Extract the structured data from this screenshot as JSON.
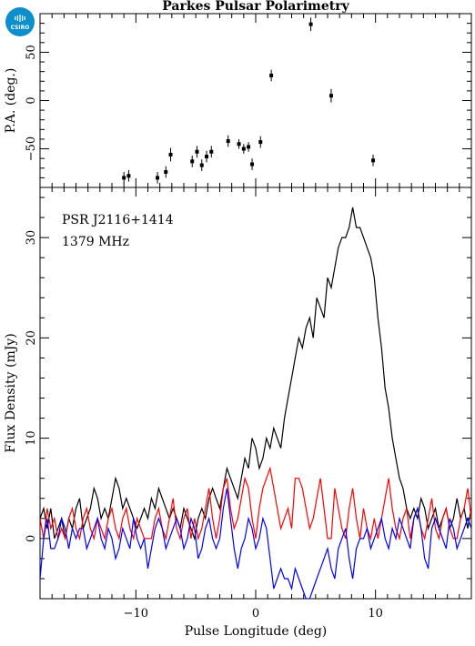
{
  "title": "Parkes Pulsar Polarimetry",
  "logo": {
    "text": "CSIRO",
    "color": "#0e8fcd"
  },
  "chart_data": [
    {
      "type": "scatter",
      "panel": "top",
      "ylabel": "P.A. (deg.)",
      "xlim": [
        -18,
        18
      ],
      "ylim": [
        -90,
        90
      ],
      "yticks": [
        -50,
        0,
        50
      ],
      "points": [
        {
          "x": -11.0,
          "y": -80,
          "err": 6
        },
        {
          "x": -10.6,
          "y": -78,
          "err": 6
        },
        {
          "x": -8.2,
          "y": -80,
          "err": 6
        },
        {
          "x": -7.5,
          "y": -74,
          "err": 6
        },
        {
          "x": -7.1,
          "y": -56,
          "err": 7
        },
        {
          "x": -5.3,
          "y": -63,
          "err": 6
        },
        {
          "x": -4.9,
          "y": -53,
          "err": 6
        },
        {
          "x": -4.5,
          "y": -67,
          "err": 6
        },
        {
          "x": -4.1,
          "y": -58,
          "err": 6
        },
        {
          "x": -3.7,
          "y": -53,
          "err": 6
        },
        {
          "x": -2.3,
          "y": -42,
          "err": 6
        },
        {
          "x": -1.4,
          "y": -45,
          "err": 5
        },
        {
          "x": -1.0,
          "y": -50,
          "err": 5
        },
        {
          "x": -0.6,
          "y": -48,
          "err": 5
        },
        {
          "x": -0.3,
          "y": -66,
          "err": 6
        },
        {
          "x": 0.4,
          "y": -43,
          "err": 6
        },
        {
          "x": 1.3,
          "y": 26,
          "err": 6
        },
        {
          "x": 4.6,
          "y": 79,
          "err": 7
        },
        {
          "x": 6.3,
          "y": 5,
          "err": 7
        },
        {
          "x": 9.8,
          "y": -62,
          "err": 6
        }
      ]
    },
    {
      "type": "line",
      "panel": "bottom",
      "xlabel": "Pulse Longitude (deg)",
      "ylabel": "Flux Density (mJy)",
      "xlim": [
        -18,
        18
      ],
      "ylim": [
        -6,
        35
      ],
      "xticks": [
        -10,
        0,
        10
      ],
      "yticks": [
        0,
        10,
        20,
        30
      ],
      "annotations": [
        "PSR J2116+1414",
        "1379 MHz"
      ],
      "x_start": -18,
      "x_step": 0.3,
      "series": [
        {
          "color": "#000000",
          "values": [
            2,
            3,
            1,
            3,
            0,
            1,
            2,
            0,
            2,
            1,
            3,
            4,
            1,
            2,
            3,
            5,
            4,
            2,
            3,
            2,
            4,
            6,
            5,
            3,
            4,
            3,
            2,
            1,
            2,
            3,
            2,
            4,
            3,
            5,
            4,
            3,
            2,
            3,
            2,
            1,
            3,
            2,
            1,
            0,
            2,
            3,
            2,
            4,
            5,
            4,
            3,
            5,
            7,
            6,
            5,
            4,
            6,
            8,
            7,
            10,
            9,
            7,
            8,
            10,
            9,
            11,
            10,
            9,
            12,
            14,
            16,
            18,
            20,
            19,
            21,
            22,
            20,
            24,
            23,
            22,
            26,
            25,
            27,
            29,
            30,
            30,
            31,
            33,
            31,
            31,
            30,
            29,
            28,
            26,
            22,
            19,
            15,
            13,
            10,
            8,
            6,
            5,
            3,
            2,
            3,
            2,
            4,
            3,
            1,
            2,
            3,
            1,
            2,
            3,
            1,
            2,
            4,
            2,
            3,
            1,
            3,
            2,
            1,
            2,
            3,
            2,
            3,
            2,
            4,
            3,
            2,
            3,
            1,
            2,
            3,
            2,
            4,
            3,
            2
          ]
        },
        {
          "color": "#ff0000",
          "values": [
            2,
            0,
            3,
            1,
            2,
            0,
            1,
            0,
            2,
            3,
            1,
            0,
            2,
            3,
            1,
            0,
            2,
            1,
            0,
            2,
            3,
            1,
            0,
            2,
            3,
            1,
            0,
            2,
            1,
            0,
            0,
            0,
            2,
            3,
            1,
            0,
            2,
            4,
            1,
            0,
            2,
            3,
            0,
            2,
            0,
            1,
            3,
            5,
            2,
            0,
            2,
            5,
            6,
            3,
            1,
            2,
            4,
            6,
            5,
            2,
            0,
            3,
            5,
            6,
            7,
            5,
            3,
            1,
            2,
            3,
            1,
            6,
            6,
            5,
            3,
            1,
            2,
            4,
            6,
            3,
            0,
            0,
            5,
            3,
            1,
            0,
            3,
            5,
            2,
            0,
            3,
            1,
            0,
            2,
            0,
            2,
            4,
            6,
            3,
            1,
            0,
            2,
            3,
            0,
            2,
            3,
            1,
            0,
            2,
            4,
            1,
            0,
            2,
            3,
            1,
            0,
            0,
            2,
            3,
            5,
            2,
            0,
            1,
            3,
            1,
            0,
            2,
            4,
            1,
            0,
            2,
            3,
            1,
            0,
            2,
            3,
            1
          ]
        },
        {
          "color": "#0000ff",
          "values": [
            -4,
            0,
            2,
            -1,
            -1,
            0,
            2,
            1,
            -1,
            1,
            0,
            1,
            1,
            -1,
            0,
            1,
            2,
            0,
            -1,
            1,
            0,
            -2,
            -1,
            1,
            0,
            -1,
            2,
            0,
            -1,
            0,
            -3,
            -1,
            1,
            2,
            1,
            -1,
            0,
            1,
            2,
            1,
            -1,
            0,
            2,
            1,
            -2,
            -1,
            1,
            2,
            0,
            -1,
            0,
            3,
            5,
            2,
            -1,
            -3,
            -1,
            0,
            2,
            1,
            -1,
            0,
            2,
            1,
            -2,
            -5,
            -4,
            -3,
            -4,
            -4,
            -5,
            -3,
            -4,
            -5,
            -6,
            -6,
            -5,
            -4,
            -3,
            -2,
            -1,
            -3,
            -4,
            -1,
            0,
            1,
            -2,
            -4,
            -1,
            0,
            0,
            1,
            -1,
            0,
            1,
            2,
            0,
            -1,
            1,
            0,
            2,
            1,
            0,
            -1,
            2,
            3,
            1,
            -2,
            -3,
            1,
            2,
            1,
            0,
            -1,
            2,
            1,
            -1,
            0,
            1,
            2,
            1,
            0,
            -1,
            1,
            0,
            -2,
            -1
          ]
        }
      ]
    }
  ]
}
